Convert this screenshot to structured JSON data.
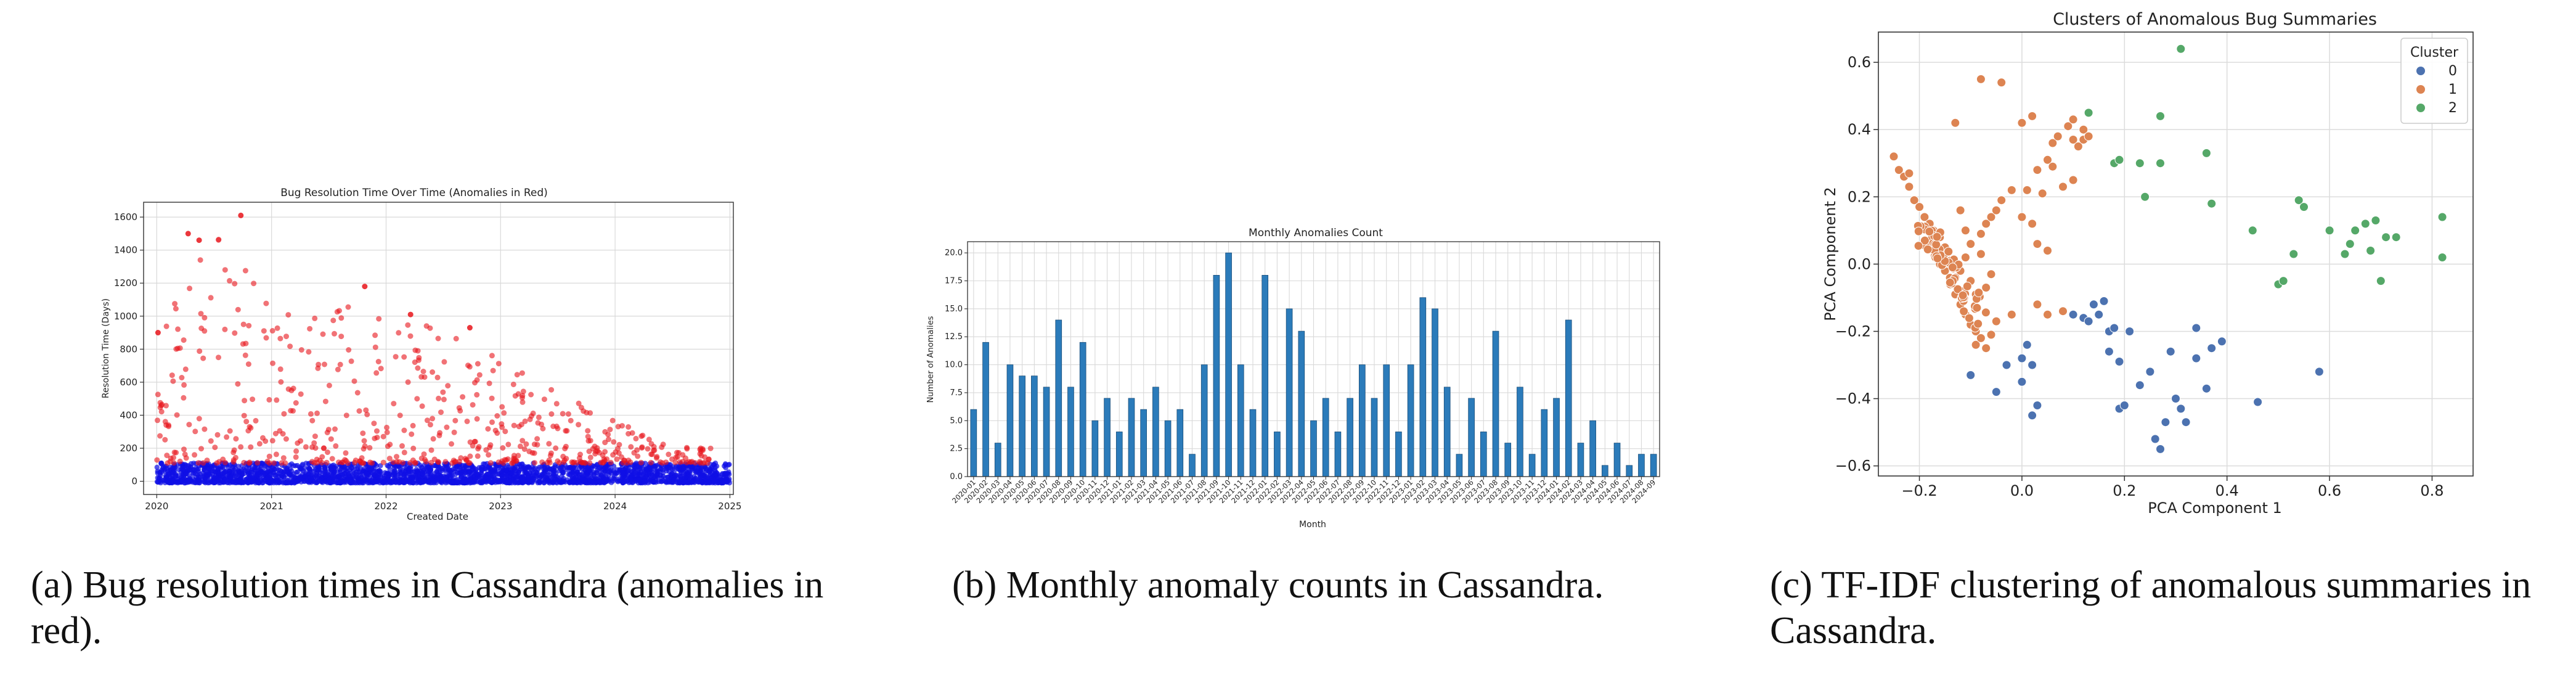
{
  "charts": {
    "a": {
      "caption": "(a) Bug resolution times in Cassandra (anomalies in red).",
      "colors": {
        "anomaly": "#e8141a",
        "normal": "#1010e6"
      },
      "chart_data": {
        "type": "scatter",
        "title": "Bug Resolution Time Over Time (Anomalies in Red)",
        "xlabel": "Created Date",
        "ylabel": "Resolution Time (Days)",
        "xlim": [
          "2019-11-20",
          "2025-01-12"
        ],
        "ylim": [
          -80,
          1690
        ],
        "xticks": [
          "2020",
          "2021",
          "2022",
          "2023",
          "2024",
          "2025"
        ],
        "yticks": [
          0,
          200,
          400,
          600,
          800,
          1000,
          1200,
          1400,
          1600
        ],
        "grid": true,
        "notable_points": [
          {
            "x": "2020-09-25",
            "y": 1610
          },
          {
            "x": "2020-04-10",
            "y": 1500
          },
          {
            "x": "2020-05-15",
            "y": 1460
          },
          {
            "x": "2021-10-25",
            "y": 1180
          },
          {
            "x": "2022-03-20",
            "y": 1010
          },
          {
            "x": "2022-09-25",
            "y": 930
          },
          {
            "x": "2020-01-05",
            "y": 900
          }
        ],
        "anomaly_points_approx": 560,
        "normal_points_approx": 2600,
        "normal_band_range": [
          -10,
          110
        ],
        "anomaly_envelope": [
          {
            "x": "2020-01-01",
            "y": 950
          },
          {
            "x": "2020-07-01",
            "y": 1500
          },
          {
            "x": "2021-01-01",
            "y": 1150
          },
          {
            "x": "2022-01-01",
            "y": 1050
          },
          {
            "x": "2023-01-01",
            "y": 750
          },
          {
            "x": "2024-01-01",
            "y": 360
          },
          {
            "x": "2024-10-01",
            "y": 200
          }
        ]
      }
    },
    "b": {
      "caption": "(b) Monthly anomaly counts in Cassandra.",
      "colors": {
        "bar": "#2b7bba",
        "bar_edge": "#1a4d78"
      },
      "chart_data": {
        "type": "bar",
        "title": "Monthly Anomalies Count",
        "xlabel": "Month",
        "ylabel": "Number of Anomalies",
        "ylim": [
          0,
          21
        ],
        "yticks": [
          "0.0",
          "2.5",
          "5.0",
          "7.5",
          "10.0",
          "12.5",
          "15.0",
          "17.5",
          "20.0"
        ],
        "grid": true,
        "categories": [
          "2020-01",
          "2020-02",
          "2020-03",
          "2020-04",
          "2020-05",
          "2020-06",
          "2020-07",
          "2020-08",
          "2020-09",
          "2020-10",
          "2020-11",
          "2020-12",
          "2021-01",
          "2021-02",
          "2021-03",
          "2021-04",
          "2021-05",
          "2021-06",
          "2021-07",
          "2021-08",
          "2021-09",
          "2021-10",
          "2021-11",
          "2021-12",
          "2022-01",
          "2022-02",
          "2022-03",
          "2022-04",
          "2022-05",
          "2022-06",
          "2022-07",
          "2022-08",
          "2022-09",
          "2022-10",
          "2022-11",
          "2022-12",
          "2023-01",
          "2023-02",
          "2023-03",
          "2023-04",
          "2023-05",
          "2023-06",
          "2023-07",
          "2023-08",
          "2023-09",
          "2023-10",
          "2023-11",
          "2023-12",
          "2024-01",
          "2024-02",
          "2024-03",
          "2024-04",
          "2024-05",
          "2024-06",
          "2024-07",
          "2024-08",
          "2024-09"
        ],
        "values": [
          6,
          12,
          3,
          10,
          9,
          9,
          8,
          14,
          8,
          12,
          5,
          7,
          4,
          7,
          6,
          8,
          5,
          6,
          2,
          10,
          18,
          20,
          10,
          6,
          18,
          4,
          15,
          13,
          5,
          7,
          4,
          7,
          10,
          7,
          10,
          4,
          10,
          16,
          15,
          8,
          2,
          7,
          4,
          13,
          3,
          8,
          2,
          6,
          7,
          14,
          3,
          5,
          1,
          3,
          1,
          2,
          2
        ]
      }
    },
    "c": {
      "caption": "(c) TF-IDF clustering of anomalous summaries in Cassandra.",
      "chart_data": {
        "type": "scatter",
        "title": "Clusters of Anomalous Bug Summaries",
        "xlabel": "PCA Component 1",
        "ylabel": "PCA Component 2",
        "xlim": [
          -0.28,
          0.88
        ],
        "ylim": [
          -0.63,
          0.69
        ],
        "xticks": [
          "−0.2",
          "0.0",
          "0.2",
          "0.4",
          "0.6",
          "0.8"
        ],
        "yticks": [
          "−0.6",
          "−0.4",
          "−0.2",
          "0.0",
          "0.2",
          "0.4",
          "0.6"
        ],
        "grid": true,
        "legend": {
          "title": "Cluster",
          "position": "top-right"
        },
        "series": [
          {
            "name": "0",
            "color": "#4c72b0",
            "points": [
              [
                -0.1,
                -0.33
              ],
              [
                -0.05,
                -0.38
              ],
              [
                -0.03,
                -0.3
              ],
              [
                0.0,
                -0.28
              ],
              [
                0.01,
                -0.24
              ],
              [
                0.0,
                -0.35
              ],
              [
                0.02,
                -0.45
              ],
              [
                0.03,
                -0.42
              ],
              [
                0.02,
                -0.3
              ],
              [
                0.1,
                -0.15
              ],
              [
                0.12,
                -0.16
              ],
              [
                0.13,
                -0.17
              ],
              [
                0.14,
                -0.12
              ],
              [
                0.15,
                -0.15
              ],
              [
                0.16,
                -0.11
              ],
              [
                0.17,
                -0.2
              ],
              [
                0.17,
                -0.26
              ],
              [
                0.18,
                -0.19
              ],
              [
                0.19,
                -0.29
              ],
              [
                0.19,
                -0.43
              ],
              [
                0.2,
                -0.42
              ],
              [
                0.21,
                -0.2
              ],
              [
                0.23,
                -0.36
              ],
              [
                0.25,
                -0.32
              ],
              [
                0.26,
                -0.52
              ],
              [
                0.27,
                -0.55
              ],
              [
                0.28,
                -0.47
              ],
              [
                0.29,
                -0.26
              ],
              [
                0.3,
                -0.4
              ],
              [
                0.31,
                -0.43
              ],
              [
                0.32,
                -0.47
              ],
              [
                0.34,
                -0.19
              ],
              [
                0.34,
                -0.28
              ],
              [
                0.36,
                -0.37
              ],
              [
                0.37,
                -0.25
              ],
              [
                0.39,
                -0.23
              ],
              [
                0.46,
                -0.41
              ],
              [
                0.58,
                -0.32
              ]
            ]
          },
          {
            "name": "1",
            "color": "#dd8452",
            "points": [
              [
                -0.25,
                0.32
              ],
              [
                -0.24,
                0.28
              ],
              [
                -0.23,
                0.26
              ],
              [
                -0.22,
                0.27
              ],
              [
                -0.22,
                0.23
              ],
              [
                -0.21,
                0.19
              ],
              [
                -0.2,
                0.17
              ],
              [
                -0.19,
                0.14
              ],
              [
                -0.18,
                0.12
              ],
              [
                -0.18,
                0.06
              ],
              [
                -0.17,
                0.03
              ],
              [
                -0.16,
                0.0
              ],
              [
                -0.15,
                -0.02
              ],
              [
                -0.15,
                0.05
              ],
              [
                -0.14,
                0.01
              ],
              [
                -0.13,
                -0.04
              ],
              [
                -0.13,
                -0.09
              ],
              [
                -0.12,
                -0.12
              ],
              [
                -0.11,
                -0.15
              ],
              [
                -0.1,
                -0.18
              ],
              [
                -0.09,
                -0.2
              ],
              [
                -0.09,
                -0.24
              ],
              [
                -0.08,
                -0.22
              ],
              [
                -0.07,
                -0.25
              ],
              [
                -0.06,
                -0.21
              ],
              [
                -0.05,
                -0.17
              ],
              [
                -0.1,
                0.06
              ],
              [
                -0.08,
                0.09
              ],
              [
                -0.07,
                0.12
              ],
              [
                -0.06,
                0.14
              ],
              [
                -0.05,
                0.16
              ],
              [
                -0.04,
                0.19
              ],
              [
                -0.02,
                0.22
              ],
              [
                0.01,
                0.22
              ],
              [
                0.03,
                0.28
              ],
              [
                0.05,
                0.31
              ],
              [
                0.06,
                0.36
              ],
              [
                0.07,
                0.38
              ],
              [
                0.09,
                0.41
              ],
              [
                0.1,
                0.37
              ],
              [
                0.11,
                0.35
              ],
              [
                0.12,
                0.37
              ],
              [
                0.12,
                0.4
              ],
              [
                0.13,
                0.38
              ],
              [
                0.02,
                0.44
              ],
              [
                0.06,
                0.29
              ],
              [
                0.04,
                0.21
              ],
              [
                0.08,
                0.23
              ],
              [
                0.1,
                0.25
              ],
              [
                0.0,
                0.14
              ],
              [
                0.02,
                0.12
              ],
              [
                0.03,
                0.06
              ],
              [
                0.05,
                0.04
              ],
              [
                0.03,
                -0.12
              ],
              [
                0.05,
                -0.15
              ],
              [
                0.08,
                -0.14
              ],
              [
                -0.02,
                -0.15
              ],
              [
                -0.08,
                0.55
              ],
              [
                -0.04,
                0.54
              ],
              [
                -0.13,
                0.42
              ],
              [
                0.0,
                0.42
              ],
              [
                0.1,
                0.43
              ],
              [
                -0.12,
                0.16
              ],
              [
                -0.11,
                0.1
              ],
              [
                -0.16,
                0.08
              ],
              [
                -0.14,
                -0.06
              ],
              [
                -0.12,
                -0.02
              ],
              [
                -0.11,
                0.02
              ],
              [
                -0.1,
                -0.05
              ],
              [
                -0.09,
                -0.09
              ],
              [
                -0.07,
                -0.07
              ],
              [
                -0.06,
                -0.03
              ],
              [
                -0.08,
                0.03
              ]
            ]
          },
          {
            "name": "2",
            "color": "#55a868",
            "points": [
              [
                0.13,
                0.45
              ],
              [
                0.18,
                0.3
              ],
              [
                0.19,
                0.31
              ],
              [
                0.23,
                0.3
              ],
              [
                0.24,
                0.2
              ],
              [
                0.27,
                0.44
              ],
              [
                0.27,
                0.3
              ],
              [
                0.31,
                0.64
              ],
              [
                0.36,
                0.33
              ],
              [
                0.37,
                0.18
              ],
              [
                0.45,
                0.1
              ],
              [
                0.5,
                -0.06
              ],
              [
                0.51,
                -0.05
              ],
              [
                0.53,
                0.03
              ],
              [
                0.54,
                0.19
              ],
              [
                0.55,
                0.17
              ],
              [
                0.6,
                0.1
              ],
              [
                0.63,
                0.03
              ],
              [
                0.64,
                0.06
              ],
              [
                0.65,
                0.1
              ],
              [
                0.67,
                0.12
              ],
              [
                0.68,
                0.04
              ],
              [
                0.69,
                0.13
              ],
              [
                0.7,
                -0.05
              ],
              [
                0.71,
                0.08
              ],
              [
                0.73,
                0.08
              ],
              [
                0.82,
                0.14
              ],
              [
                0.82,
                0.02
              ]
            ]
          }
        ]
      }
    }
  }
}
